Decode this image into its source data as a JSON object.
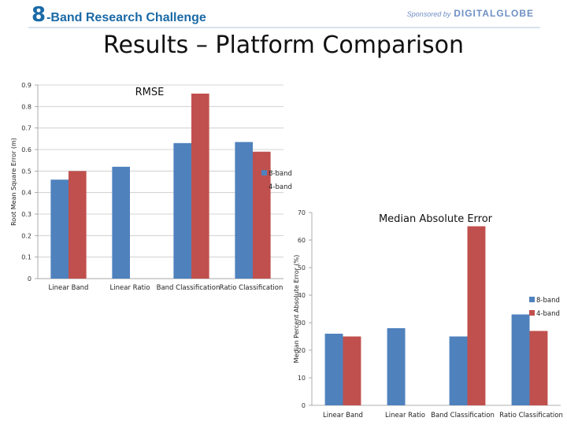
{
  "header": {
    "logo_number": "8",
    "logo_text": "-Band Research Challenge",
    "sponsor_prefix": "Sponsored by",
    "sponsor_name": "DIGITALGLOBE"
  },
  "page_title": "Results – Platform Comparison",
  "colors": {
    "series_8band": "#4f81bd",
    "series_4band": "#c0504d"
  },
  "chart_data": [
    {
      "type": "bar",
      "title": "RMSE",
      "ylabel": "Root Mean Square Error (m)",
      "xlabel": "",
      "categories": [
        "Linear Band",
        "Linear Ratio",
        "Band Classification",
        "Ratio Classification"
      ],
      "series": [
        {
          "name": "8-band",
          "values": [
            0.46,
            0.52,
            0.63,
            0.635
          ]
        },
        {
          "name": "4-band",
          "values": [
            0.5,
            null,
            0.86,
            0.59
          ]
        }
      ],
      "ylim": [
        0,
        0.9
      ],
      "yticks": [
        0,
        0.1,
        0.2,
        0.3,
        0.4,
        0.5,
        0.6,
        0.7,
        0.8,
        0.9
      ],
      "ytick_labels": [
        "0",
        "0.1",
        "0.2",
        "0.3",
        "0.4",
        "0.5",
        "0.6",
        "0.7",
        "0.8",
        "0.9"
      ],
      "grid": true,
      "legend": "right"
    },
    {
      "type": "bar",
      "title": "Median Absolute Error",
      "ylabel": "Median Percent Absolute Error (%)",
      "xlabel": "",
      "categories": [
        "Linear Band",
        "Linear Ratio",
        "Band Classification",
        "Ratio Classification"
      ],
      "series": [
        {
          "name": "8-band",
          "values": [
            26,
            28,
            25,
            33
          ]
        },
        {
          "name": "4-band",
          "values": [
            25,
            null,
            65,
            27
          ]
        }
      ],
      "ylim": [
        0,
        70
      ],
      "yticks": [
        0,
        10,
        20,
        30,
        40,
        50,
        60,
        70
      ],
      "ytick_labels": [
        "0",
        "10",
        "20",
        "30",
        "40",
        "50",
        "60",
        "70"
      ],
      "grid": false,
      "legend": "right"
    }
  ]
}
